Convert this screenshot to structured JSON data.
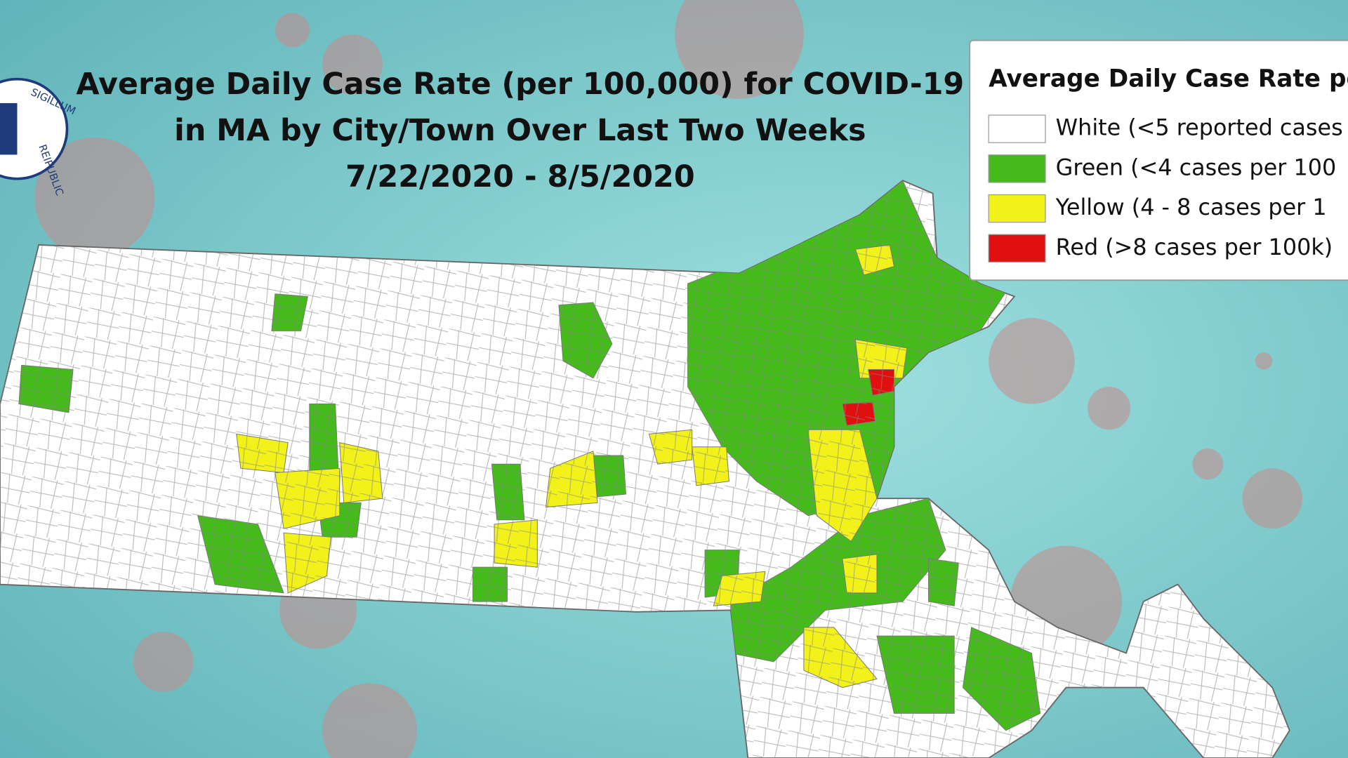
{
  "title": {
    "lines": [
      "Average Daily Case Rate (per 100,000) for COVID-19",
      "in MA by City/Town Over Last Two Weeks",
      "7/22/2020 - 8/5/2020"
    ]
  },
  "seal": {
    "top": "SIGILLUM",
    "bottom": "REIPUBLIC"
  },
  "legend": {
    "title": "Average Daily Case Rate pe",
    "items": [
      {
        "label": "White (<5 reported cases",
        "color": "#ffffff"
      },
      {
        "label": "Green (<4 cases per 100",
        "color": "#44bb1a"
      },
      {
        "label": "Yellow (4 - 8 cases per 1",
        "color": "#f2f21a"
      },
      {
        "label": "Red (>8 cases per 100k)",
        "color": "#e01010"
      }
    ]
  }
}
